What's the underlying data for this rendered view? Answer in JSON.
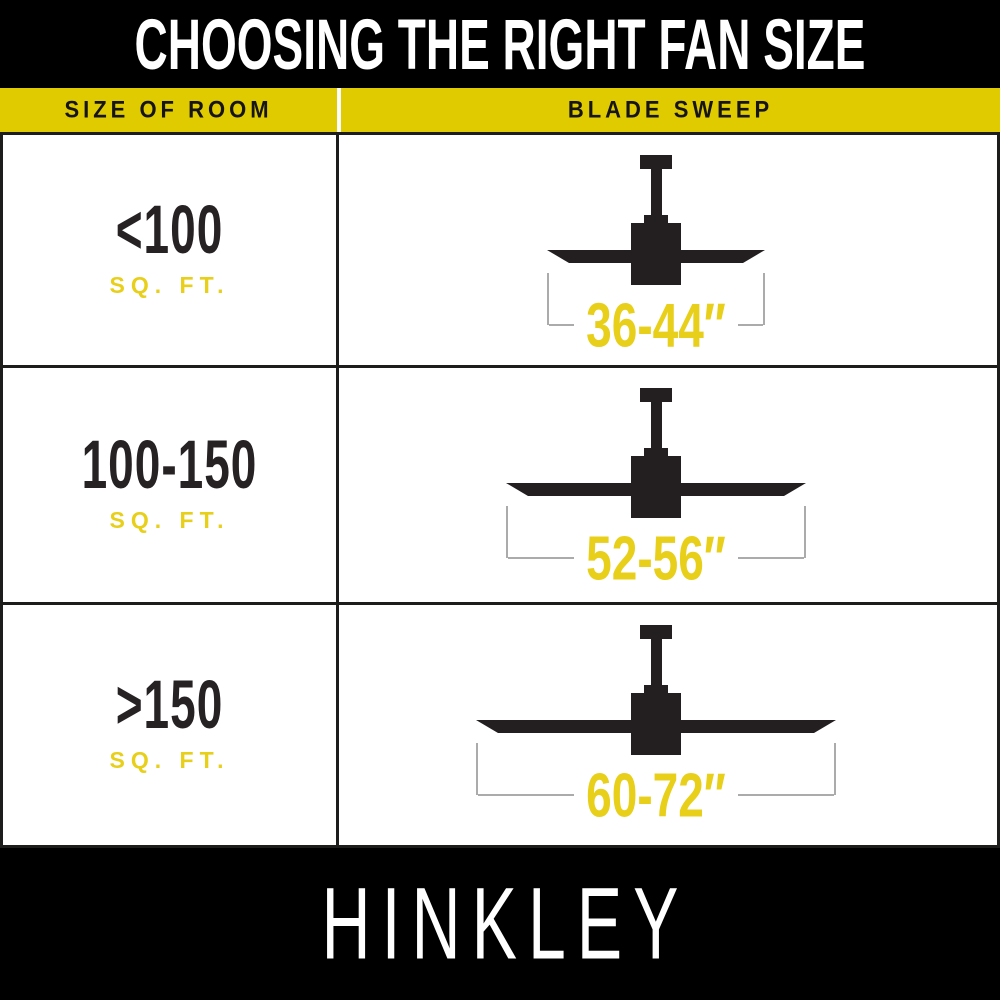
{
  "header": {
    "title": "CHOOSING THE RIGHT FAN SIZE"
  },
  "table": {
    "column_headers": {
      "room": "SIZE OF ROOM",
      "sweep": "BLADE SWEEP"
    },
    "rows": [
      {
        "room_size": "<100",
        "room_unit": "SQ. FT.",
        "blade_sweep": "36-44″",
        "icon": "ceiling-fan-icon"
      },
      {
        "room_size": "100-150",
        "room_unit": "SQ. FT.",
        "blade_sweep": "52-56″",
        "icon": "ceiling-fan-icon"
      },
      {
        "room_size": ">150",
        "room_unit": "SQ. FT.",
        "blade_sweep": "60-72″",
        "icon": "ceiling-fan-icon"
      }
    ]
  },
  "footer": {
    "brand": "HINKLEY"
  },
  "colors": {
    "yellow": "#DFCB00",
    "yellow_text": "#E8CF1A",
    "black": "#000000",
    "icon_dark": "#231F20",
    "bracket_gray": "#ABABAB",
    "border": "#1D1D1B",
    "dark_text": "#262224"
  },
  "chart_data": {
    "type": "table",
    "title": "CHOOSING THE RIGHT FAN SIZE",
    "columns": [
      "SIZE OF ROOM (SQ. FT.)",
      "BLADE SWEEP (inches)"
    ],
    "rows": [
      [
        "<100",
        "36-44"
      ],
      [
        "100-150",
        "52-56"
      ],
      [
        ">150",
        "60-72"
      ]
    ],
    "legend_position": "none",
    "grid": true
  }
}
